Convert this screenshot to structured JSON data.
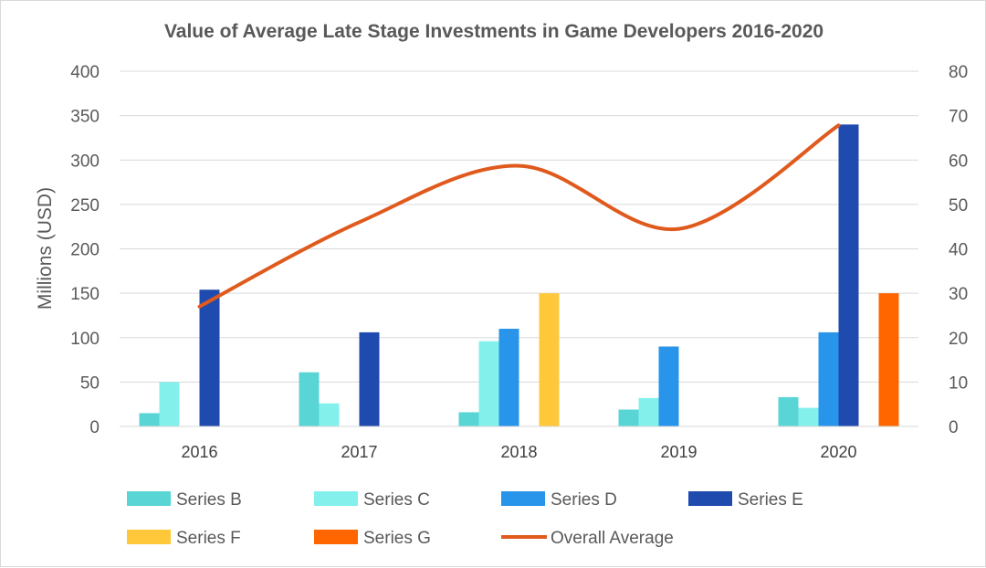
{
  "chart_data": {
    "type": "bar",
    "title": "Value of Average Late Stage Investments in Game Developers 2016-2020",
    "ylabel": "Millions (USD)",
    "ylim": [
      0,
      400
    ],
    "y_ticks": [
      "0",
      "50",
      "100",
      "150",
      "200",
      "250",
      "300",
      "350",
      "400"
    ],
    "y2lim": [
      0,
      80
    ],
    "y2_ticks": [
      "0",
      "10",
      "20",
      "30",
      "40",
      "50",
      "60",
      "70",
      "80"
    ],
    "grid": true,
    "legend_position": "bottom",
    "categories": [
      "2016",
      "2017",
      "2018",
      "2019",
      "2020"
    ],
    "series": [
      {
        "name": "Series B",
        "type": "bar",
        "color": "#5ad5d5",
        "values": [
          15,
          61,
          16,
          19,
          33
        ]
      },
      {
        "name": "Series C",
        "type": "bar",
        "color": "#84f0ec",
        "values": [
          50,
          26,
          96,
          32,
          21
        ]
      },
      {
        "name": "Series D",
        "type": "bar",
        "color": "#2894ea",
        "values": [
          null,
          null,
          110,
          90,
          106
        ]
      },
      {
        "name": "Series E",
        "type": "bar",
        "color": "#1f4baf",
        "values": [
          154,
          106,
          null,
          null,
          340
        ]
      },
      {
        "name": "Series F",
        "type": "bar",
        "color": "#ffc83a",
        "values": [
          null,
          null,
          150,
          null,
          null
        ]
      },
      {
        "name": "Series G",
        "type": "bar",
        "color": "#ff6600",
        "values": [
          null,
          null,
          null,
          null,
          150
        ]
      },
      {
        "name": "Overall Average",
        "type": "line",
        "axis": "secondary",
        "color": "#e05a1e",
        "values": [
          27,
          46,
          58.7,
          44.5,
          67.8
        ]
      }
    ]
  }
}
